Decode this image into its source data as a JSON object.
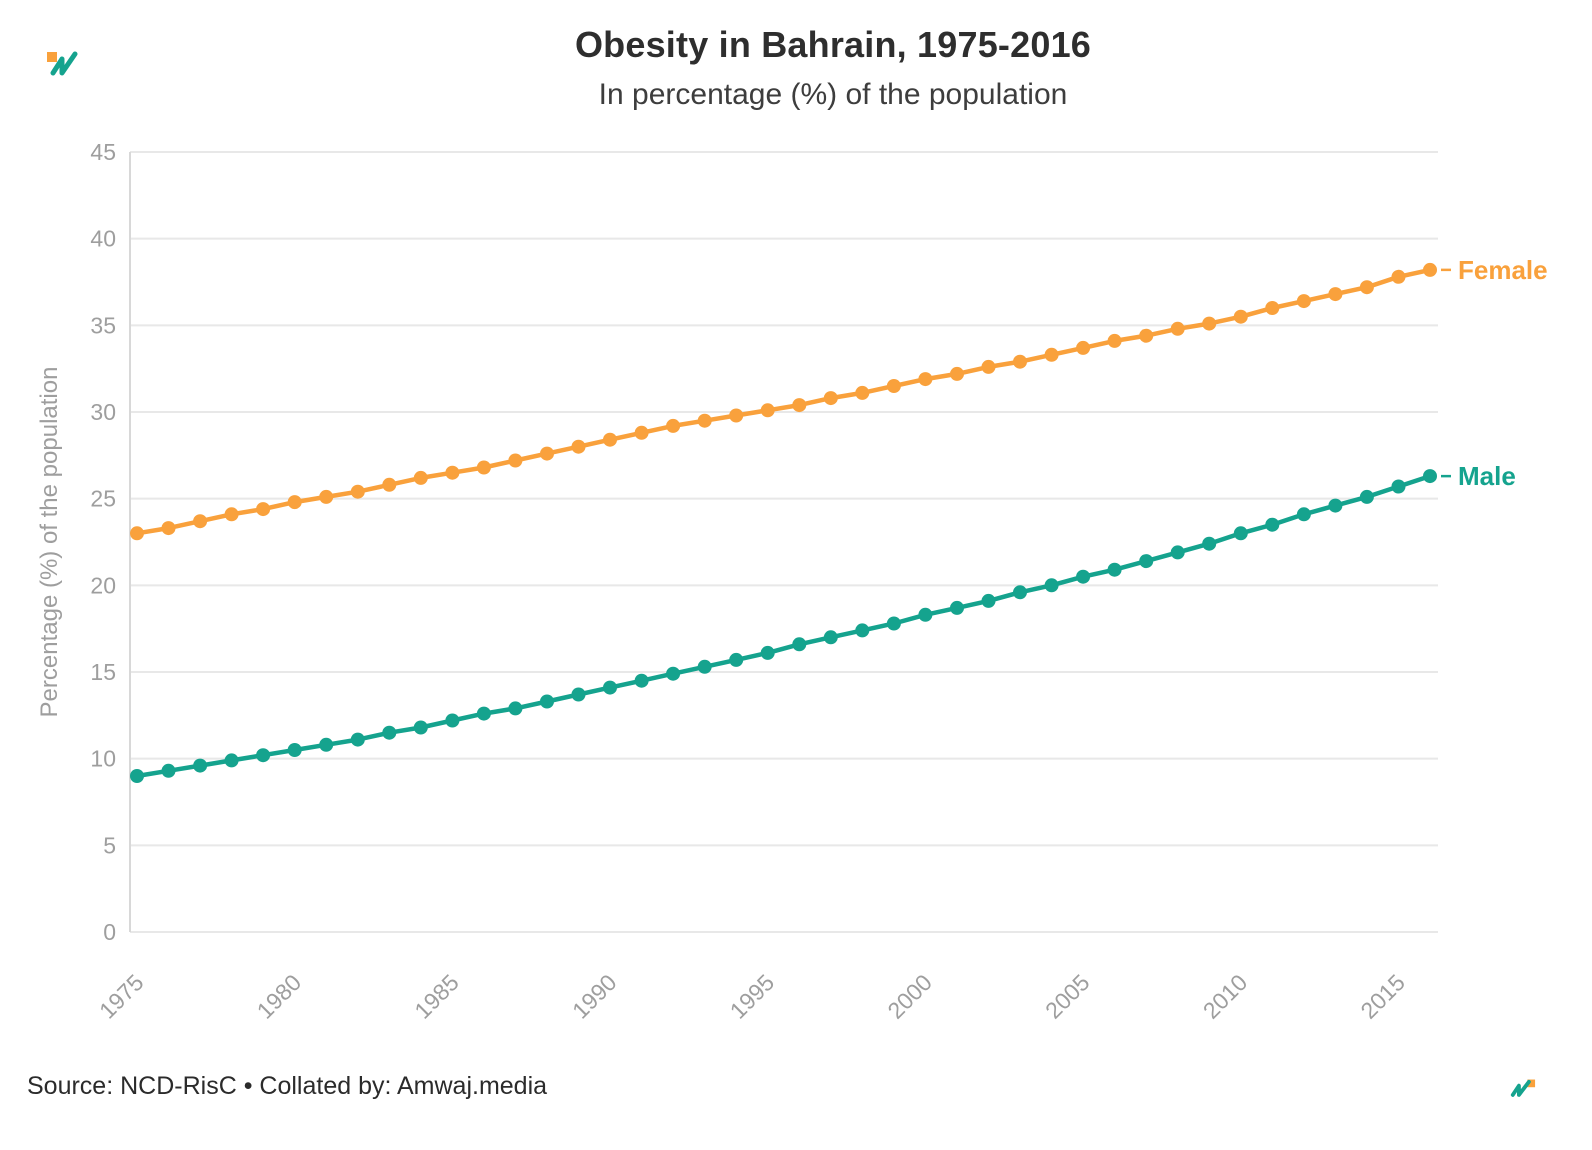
{
  "page": {
    "title": "Obesity in Bahrain, 1975-2016",
    "subtitle": "In percentage (%) of the population",
    "source": "Source: NCD-RisC • Collated by: Amwaj.media"
  },
  "colors": {
    "female": "#F9A13C",
    "male": "#15A38E",
    "grid": "#e8e8e8",
    "axis_line": "#d8d8d8",
    "tick_text": "#9e9e9e",
    "title_text": "#2e2e2e"
  },
  "chart_data": {
    "type": "line",
    "title": "Obesity in Bahrain, 1975-2016",
    "subtitle": "In percentage (%) of the population",
    "xlabel": "",
    "ylabel": "Percentage (%) of the population",
    "ylim": [
      0,
      45
    ],
    "ytick_step": 5,
    "grid": "horizontal",
    "legend_position": "end-of-line labels (right)",
    "x": [
      1975,
      1976,
      1977,
      1978,
      1979,
      1980,
      1981,
      1982,
      1983,
      1984,
      1985,
      1986,
      1987,
      1988,
      1989,
      1990,
      1991,
      1992,
      1993,
      1994,
      1995,
      1996,
      1997,
      1998,
      1999,
      2000,
      2001,
      2002,
      2003,
      2004,
      2005,
      2006,
      2007,
      2008,
      2009,
      2010,
      2011,
      2012,
      2013,
      2014,
      2015,
      2016
    ],
    "xticks": [
      1975,
      1980,
      1985,
      1990,
      1995,
      2000,
      2005,
      2010,
      2015
    ],
    "series": [
      {
        "name": "Female",
        "color": "#F9A13C",
        "values": [
          23.0,
          23.3,
          23.7,
          24.1,
          24.4,
          24.8,
          25.1,
          25.4,
          25.8,
          26.2,
          26.5,
          26.8,
          27.2,
          27.6,
          28.0,
          28.4,
          28.8,
          29.2,
          29.5,
          29.8,
          30.1,
          30.4,
          30.8,
          31.1,
          31.5,
          31.9,
          32.2,
          32.6,
          32.9,
          33.3,
          33.7,
          34.1,
          34.4,
          34.8,
          35.1,
          35.5,
          36.0,
          36.4,
          36.8,
          37.2,
          37.8,
          38.2
        ]
      },
      {
        "name": "Male",
        "color": "#15A38E",
        "values": [
          9.0,
          9.3,
          9.6,
          9.9,
          10.2,
          10.5,
          10.8,
          11.1,
          11.5,
          11.8,
          12.2,
          12.6,
          12.9,
          13.3,
          13.7,
          14.1,
          14.5,
          14.9,
          15.3,
          15.7,
          16.1,
          16.6,
          17.0,
          17.4,
          17.8,
          18.3,
          18.7,
          19.1,
          19.6,
          20.0,
          20.5,
          20.9,
          21.4,
          21.9,
          22.4,
          23.0,
          23.5,
          24.1,
          24.6,
          25.1,
          25.7,
          26.3
        ]
      }
    ]
  }
}
